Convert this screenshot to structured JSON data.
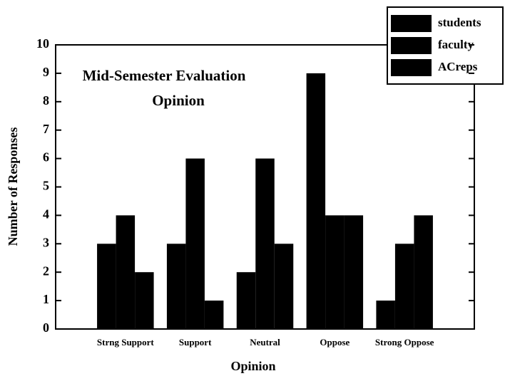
{
  "chart_data": {
    "type": "bar",
    "title": [
      "Mid-Semester Evaluation",
      "Opinion"
    ],
    "x_label": "Opinion",
    "y_label": "Number of Responses",
    "categories": [
      "Strng Support",
      "Support",
      "Neutral",
      "Oppose",
      "Strong Oppose"
    ],
    "series": [
      {
        "name": "students",
        "color": "#000000",
        "values": [
          3,
          3,
          2,
          9,
          1
        ]
      },
      {
        "name": "faculty",
        "color": "#000000",
        "values": [
          4,
          6,
          6,
          4,
          3
        ]
      },
      {
        "name": "ACreps",
        "color": "#000000",
        "values": [
          2,
          1,
          3,
          4,
          4
        ]
      }
    ],
    "ylim": [
      0,
      10
    ],
    "yticks": [
      0,
      1,
      2,
      3,
      4,
      5,
      6,
      7,
      8,
      9,
      10
    ],
    "grid": false,
    "legend": "top-right"
  }
}
